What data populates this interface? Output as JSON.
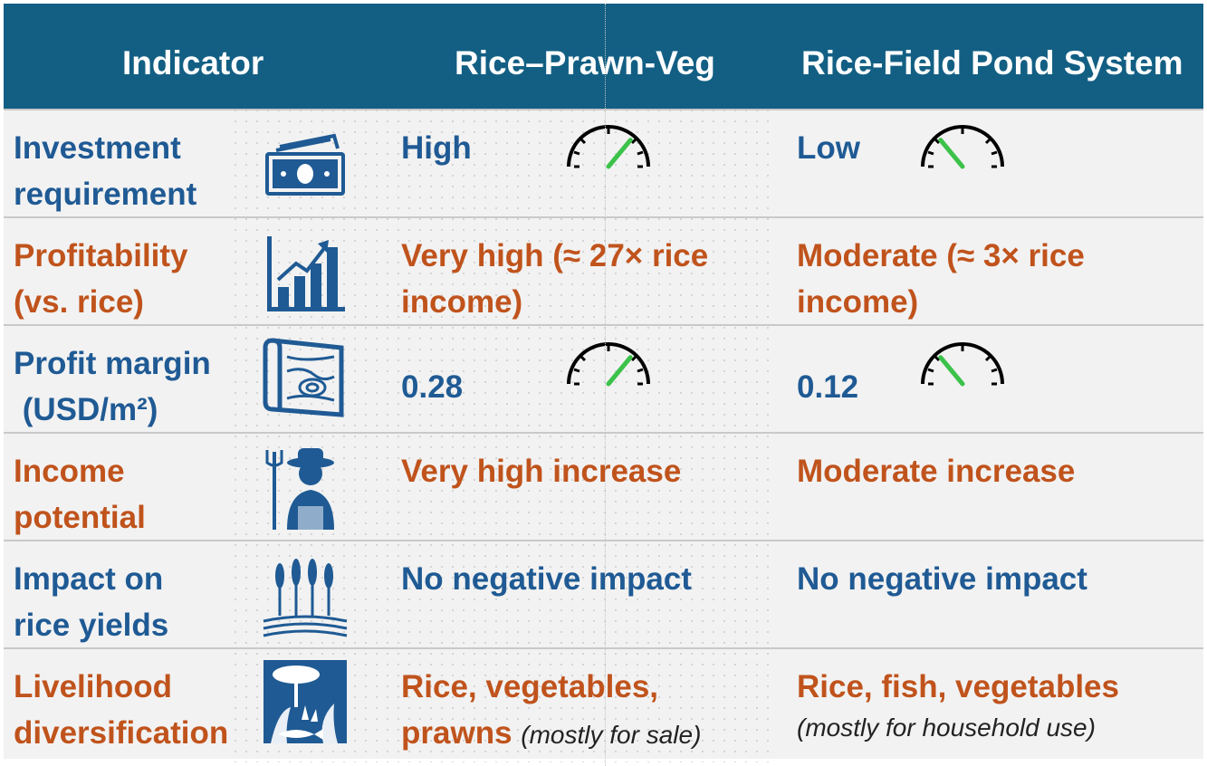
{
  "header": {
    "col_indicator": "Indicator",
    "col_system1": "Rice–Prawn-Veg",
    "col_system2": "Rice-Field Pond System"
  },
  "rows": [
    {
      "indicator": [
        "Investment",
        "requirement"
      ],
      "icon": "money-icon",
      "system1": [
        "High"
      ],
      "system2": [
        "Low"
      ],
      "gauge1_level": 0.72,
      "gauge2_level": 0.28
    },
    {
      "indicator": [
        "Profitability",
        "(vs. rice)"
      ],
      "icon": "growth-chart-icon",
      "system1": [
        "Very high (≈ 27× rice",
        "income)"
      ],
      "system2": [
        "Moderate (≈ 3× rice",
        "income)"
      ]
    },
    {
      "indicator": [
        "Profit margin",
        " (USD/m²)"
      ],
      "icon": "land-map-icon",
      "system1": [
        "0.28"
      ],
      "system2": [
        "0.12"
      ],
      "gauge1_level": 0.72,
      "gauge2_level": 0.28
    },
    {
      "indicator": [
        "Income",
        "potential"
      ],
      "icon": "farmer-icon",
      "system1": [
        "Very high increase"
      ],
      "system2": [
        "Moderate increase"
      ]
    },
    {
      "indicator": [
        "Impact on",
        "rice yields"
      ],
      "icon": "rice-field-icon",
      "system1": [
        "No negative impact"
      ],
      "system2": [
        "No negative impact"
      ]
    },
    {
      "indicator": [
        "Livelihood",
        "diversification"
      ],
      "icon": "ecosystem-icon",
      "system1": [
        "Rice, vegetables,",
        "prawns"
      ],
      "system1_note": "(mostly for sale)",
      "system2": [
        "Rice, fish, vegetables"
      ],
      "system2_note": "(mostly for household use)"
    }
  ],
  "colors": {
    "header_bg": "#135f84",
    "blue_text": "#1f5a94",
    "orange_text": "#c0531c",
    "gauge_needle": "#3cc24a"
  }
}
